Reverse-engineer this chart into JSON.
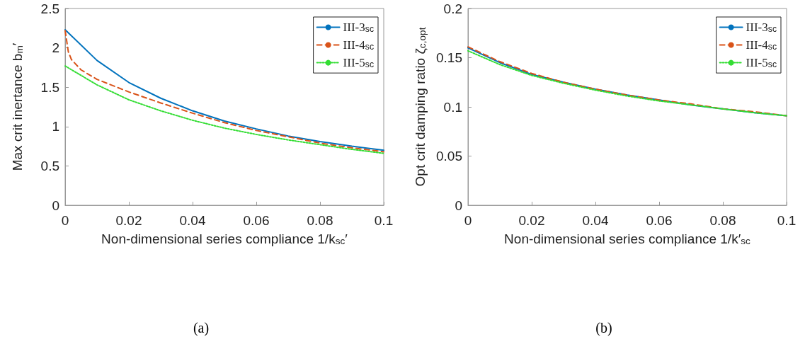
{
  "chart_data": [
    {
      "type": "line",
      "title": "(a)",
      "xlabel": "Non-dimensional series compliance 1/k$_{sc}$′",
      "ylabel": "Max crit inertance b$_{m}$′",
      "x": [
        0,
        0.01,
        0.02,
        0.03,
        0.04,
        0.05,
        0.06,
        0.07,
        0.08,
        0.09,
        0.1
      ],
      "series": [
        {
          "name": "III-3$_{sc}$",
          "color": "#0072bd",
          "line_style": "solid",
          "values": [
            2.23,
            1.84,
            1.56,
            1.36,
            1.2,
            1.07,
            0.97,
            0.88,
            0.81,
            0.75,
            0.7
          ]
        },
        {
          "name": "III-4$_{sc}$",
          "color": "#d95319",
          "line_style": "dashed",
          "x": [
            0,
            0.001,
            0.002,
            0.005,
            0.01,
            0.02,
            0.03,
            0.04,
            0.05,
            0.06,
            0.07,
            0.08,
            0.09,
            0.1
          ],
          "values": [
            2.22,
            1.95,
            1.85,
            1.72,
            1.6,
            1.44,
            1.3,
            1.17,
            1.05,
            0.95,
            0.87,
            0.79,
            0.73,
            0.68
          ]
        },
        {
          "name": "III-5$_{sc}$",
          "color": "#33dd33",
          "line_style": "dotted",
          "values": [
            1.77,
            1.53,
            1.34,
            1.2,
            1.08,
            0.98,
            0.9,
            0.83,
            0.77,
            0.71,
            0.66
          ]
        }
      ],
      "xlim": [
        0,
        0.1
      ],
      "xticks": [
        0,
        0.02,
        0.04,
        0.06,
        0.08,
        0.1
      ],
      "ylim": [
        0,
        2.5
      ],
      "yticks": [
        0,
        0.5,
        1,
        1.5,
        2,
        2.5
      ],
      "grid": false,
      "legend": "top right",
      "marker": "none"
    },
    {
      "type": "line",
      "title": "(b)",
      "xlabel": "Non-dimensional series compliance 1/k′$_{sc}$",
      "ylabel": "Opt crit damping ratio ζ$_{c,opt}$",
      "x": [
        0,
        0.01,
        0.02,
        0.03,
        0.04,
        0.05,
        0.06,
        0.07,
        0.08,
        0.09,
        0.1
      ],
      "series": [
        {
          "name": "III-3$_{sc}$",
          "color": "#0072bd",
          "line_style": "solid",
          "values": [
            0.16,
            0.145,
            0.133,
            0.125,
            0.118,
            0.112,
            0.107,
            0.102,
            0.098,
            0.094,
            0.091
          ]
        },
        {
          "name": "III-4$_{sc}$",
          "color": "#d95319",
          "line_style": "dashed",
          "values": [
            0.161,
            0.146,
            0.134,
            0.125,
            0.118,
            0.112,
            0.107,
            0.103,
            0.098,
            0.095,
            0.091
          ]
        },
        {
          "name": "III-5$_{sc}$",
          "color": "#33dd33",
          "line_style": "dotted",
          "values": [
            0.157,
            0.143,
            0.132,
            0.124,
            0.117,
            0.111,
            0.106,
            0.102,
            0.098,
            0.094,
            0.091
          ]
        }
      ],
      "xlim": [
        0,
        0.1
      ],
      "xticks": [
        0,
        0.02,
        0.04,
        0.06,
        0.08,
        0.1
      ],
      "ylim": [
        0,
        0.2
      ],
      "yticks": [
        0,
        0.05,
        0.1,
        0.15,
        0.2
      ],
      "grid": false,
      "legend": "top right",
      "marker": "none"
    }
  ]
}
